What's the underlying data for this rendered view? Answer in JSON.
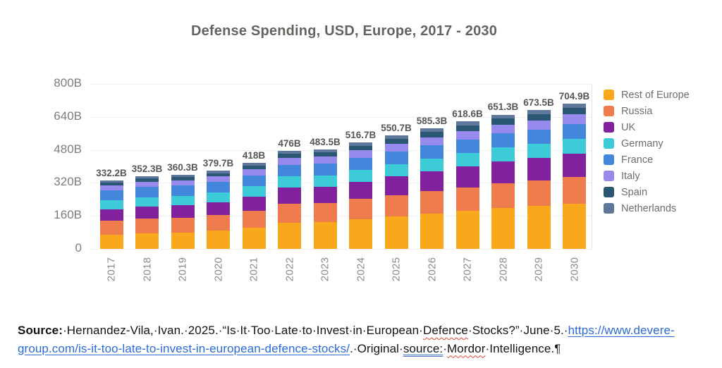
{
  "chart_data": {
    "type": "bar",
    "stacked": true,
    "title": "Defense Spending, USD, Europe, 2017 - 2030",
    "categories": [
      "2017",
      "2018",
      "2019",
      "2020",
      "2021",
      "2022",
      "2023",
      "2024",
      "2025",
      "2026",
      "2027",
      "2028",
      "2029",
      "2030"
    ],
    "totals": [
      332.2,
      352.3,
      360.3,
      379.7,
      418,
      476,
      483.5,
      516.7,
      550.7,
      585.3,
      618.6,
      651.3,
      673.5,
      704.9
    ],
    "total_labels": [
      "332.2B",
      "352.3B",
      "360.3B",
      "379.7B",
      "418B",
      "476B",
      "483.5B",
      "516.7B",
      "550.7B",
      "585.3B",
      "618.6B",
      "651.3B",
      "673.5B",
      "704.9B"
    ],
    "y_ticks": [
      "800B",
      "640B",
      "480B",
      "320B",
      "160B",
      "0"
    ],
    "ylim": [
      0,
      800
    ],
    "grid": true,
    "legend_position": "right",
    "series": [
      {
        "name": "Rest of Europe",
        "color": "#F9A71B",
        "values": [
          68.2,
          76.4,
          79.6,
          87.6,
          103.2,
          126.8,
          129.8,
          143.4,
          157.2,
          171.3,
          184.9,
          198.2,
          207.2,
          220.0
        ]
      },
      {
        "name": "Russia",
        "color": "#EE7C4D",
        "values": [
          68.0,
          71.2,
          72.5,
          75.6,
          81.8,
          91.2,
          92.4,
          97.7,
          103.2,
          108.7,
          114.1,
          119.4,
          123.0,
          128.0
        ]
      },
      {
        "name": "UK",
        "color": "#82219E",
        "values": [
          55.0,
          58.2,
          59.5,
          62.6,
          68.8,
          78.2,
          79.4,
          84.7,
          90.2,
          95.7,
          101.1,
          106.4,
          110.0,
          115.0
        ]
      },
      {
        "name": "Germany",
        "color": "#3DCBD7",
        "values": [
          43.5,
          45.0,
          45.6,
          47.1,
          50.1,
          54.5,
          55.1,
          57.6,
          60.2,
          62.9,
          65.4,
          67.9,
          69.6,
          72.0
        ]
      },
      {
        "name": "France",
        "color": "#4287DB",
        "values": [
          48.0,
          49.2,
          49.7,
          50.9,
          53.3,
          56.9,
          57.3,
          59.4,
          61.5,
          63.6,
          65.7,
          67.7,
          69.1,
          71.0
        ]
      },
      {
        "name": "Italy",
        "color": "#968BED",
        "values": [
          25.0,
          26.1,
          26.6,
          27.7,
          29.8,
          33.1,
          33.5,
          35.4,
          37.3,
          39.3,
          41.1,
          43.0,
          44.2,
          46.0
        ]
      },
      {
        "name": "Spain",
        "color": "#2A5874",
        "values": [
          13.5,
          14.5,
          14.9,
          15.9,
          17.8,
          20.6,
          21.0,
          22.7,
          24.3,
          26.1,
          27.7,
          29.3,
          30.4,
          32.0
        ]
      },
      {
        "name": "Netherlands",
        "color": "#5E779B",
        "values": [
          11.0,
          11.5,
          11.7,
          12.3,
          13.3,
          14.8,
          15.0,
          15.9,
          16.8,
          17.7,
          18.6,
          19.5,
          20.1,
          20.9
        ]
      }
    ]
  },
  "source": {
    "link_color": "#2a6ad9",
    "segments": [
      {
        "t": "Source:",
        "s": "bold"
      },
      {
        "t": "·Hernandez-Vila,·Ivan.·2025.·“Is·It·Too·Late·to·Invest·in·European·",
        "s": "plain"
      },
      {
        "t": "Defence",
        "s": "spell"
      },
      {
        "t": "·Stocks?”·June·5.·",
        "s": "plain"
      },
      {
        "t": "https://www.devere-group.com/is-it-too-late-to-invest-in-european-defence-stocks/",
        "s": "link"
      },
      {
        "t": ".·Original·",
        "s": "plain"
      },
      {
        "t": "source:",
        "s": "grammar"
      },
      {
        "t": "·",
        "s": "plain"
      },
      {
        "t": "Mordor",
        "s": "spell"
      },
      {
        "t": "·Intelligence.",
        "s": "plain"
      },
      {
        "t": "¶",
        "s": "pilcrow"
      }
    ]
  }
}
